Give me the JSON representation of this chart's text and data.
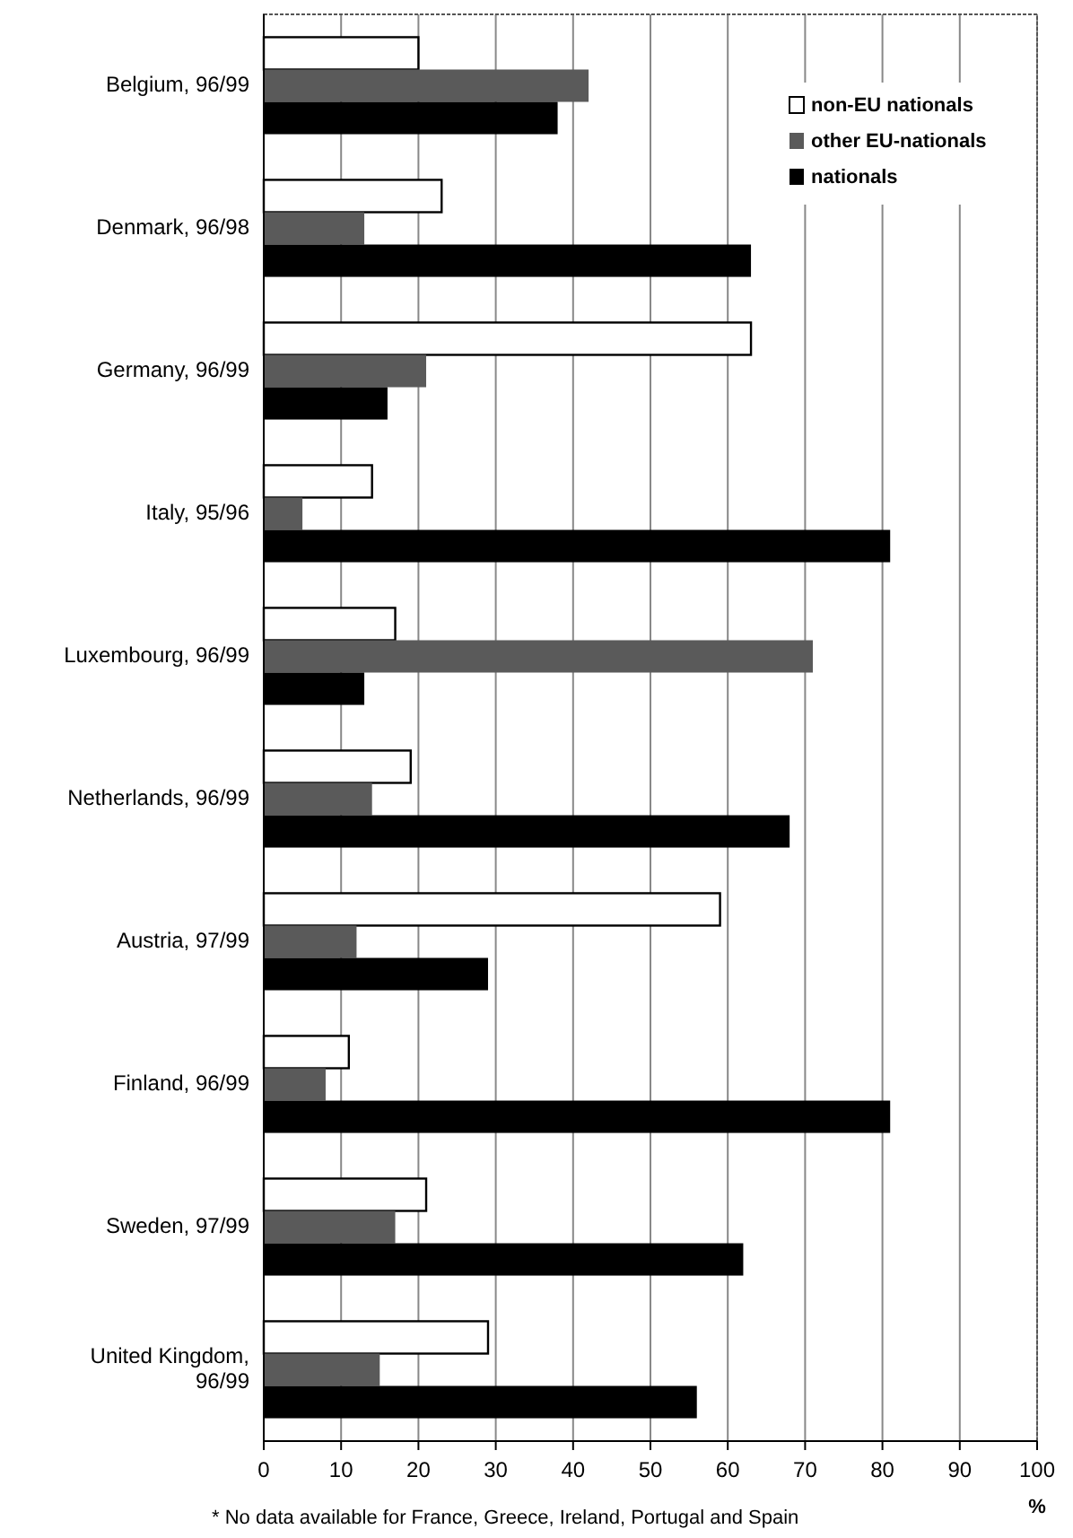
{
  "chart_data": {
    "type": "bar",
    "orientation": "horizontal",
    "categories": [
      "Belgium, 96/99",
      "Denmark, 96/98",
      "Germany, 96/99",
      "Italy, 95/96",
      "Luxembourg, 96/99",
      "Netherlands, 96/99",
      "Austria, 97/99",
      "Finland, 96/99",
      "Sweden, 97/99",
      "United Kingdom, 96/99"
    ],
    "series": [
      {
        "name": "non-EU nationals",
        "color": "#ffffff",
        "values": [
          20,
          23,
          63,
          14,
          17,
          19,
          59,
          11,
          21,
          29
        ]
      },
      {
        "name": "other EU-nationals",
        "color": "#5a5a5a",
        "values": [
          42,
          13,
          21,
          5,
          71,
          14,
          12,
          8,
          17,
          15
        ]
      },
      {
        "name": "nationals",
        "color": "#000000",
        "values": [
          38,
          63,
          16,
          81,
          13,
          68,
          29,
          81,
          62,
          56
        ]
      }
    ],
    "xlim": [
      0,
      100
    ],
    "xticks": [
      0,
      10,
      20,
      30,
      40,
      50,
      60,
      70,
      80,
      90,
      100
    ],
    "xlabel": "%",
    "grid": "x",
    "legend": "top right",
    "annotations": [
      "* No data available for France, Greece, Ireland, Portugal and Spain"
    ]
  }
}
